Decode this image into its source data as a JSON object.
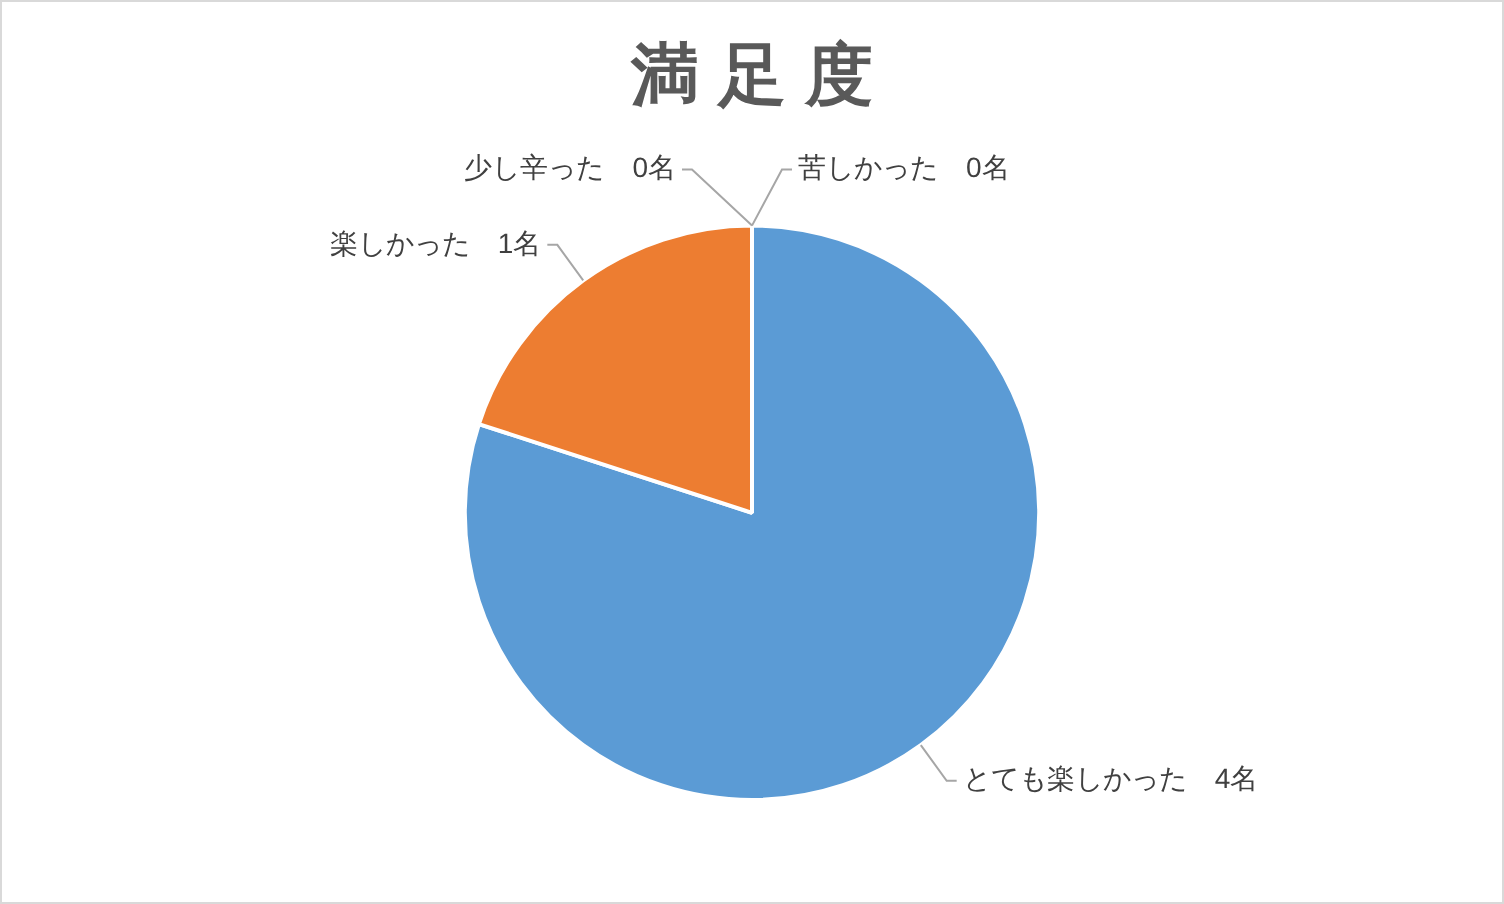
{
  "chart_data": {
    "type": "pie",
    "title": "満 足 度",
    "categories": [
      "とても楽しかった",
      "楽しかった",
      "少し辛った",
      "苦しかった"
    ],
    "values": [
      4,
      1,
      0,
      0
    ],
    "colors": [
      "#5b9bd5",
      "#ed7d31",
      "#a5a5a5",
      "#ffc000"
    ],
    "value_labels": [
      "4名",
      "1名",
      "0名",
      "0名"
    ],
    "legend": false
  }
}
